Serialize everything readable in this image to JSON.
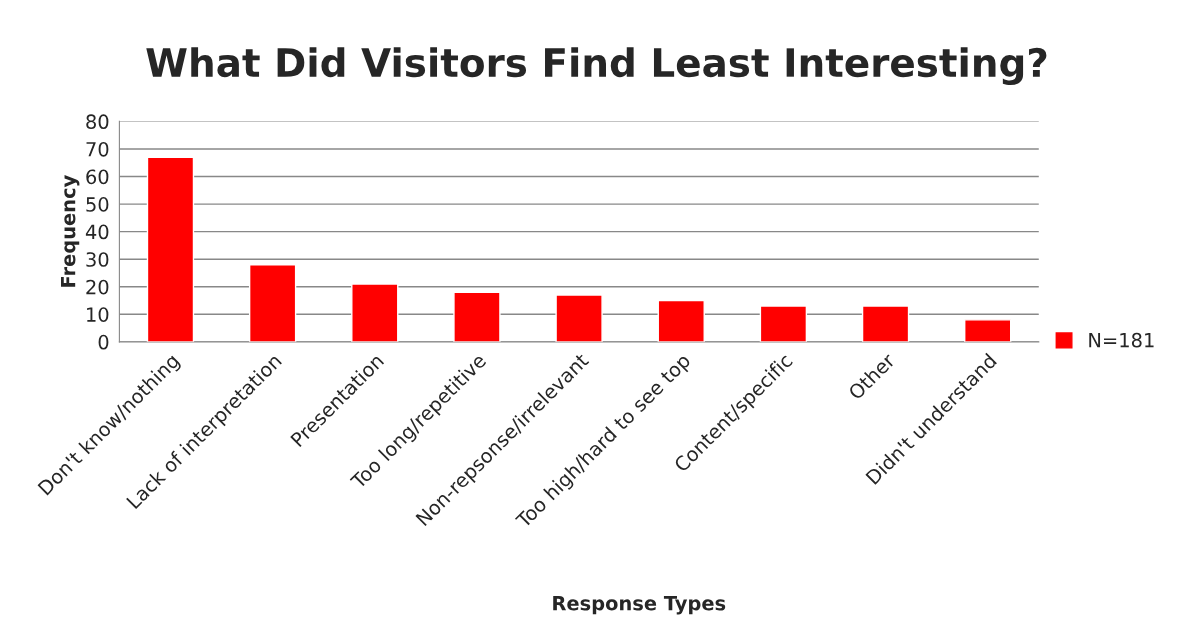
{
  "chart_data": {
    "type": "bar",
    "title": "What Did Visitors Find Least Interesting?",
    "xlabel": "Response Types",
    "ylabel": "Frequency",
    "categories": [
      "Don't know/nothing",
      "Lack of interpretation",
      "Presentation",
      "Too long/repetitive",
      "Non-repsonse/irrelevant",
      "Too high/hard to see top",
      "Content/specific",
      "Other",
      "Didn't understand"
    ],
    "series": [
      {
        "name": "N=181",
        "color": "#ff0000",
        "values": [
          67,
          28,
          21,
          18,
          17,
          15,
          13,
          13,
          8
        ]
      }
    ],
    "ylim": [
      0,
      80
    ],
    "yticks": [
      0,
      10,
      20,
      30,
      40,
      50,
      60,
      70,
      80
    ],
    "grid": "y",
    "legend": "right"
  }
}
